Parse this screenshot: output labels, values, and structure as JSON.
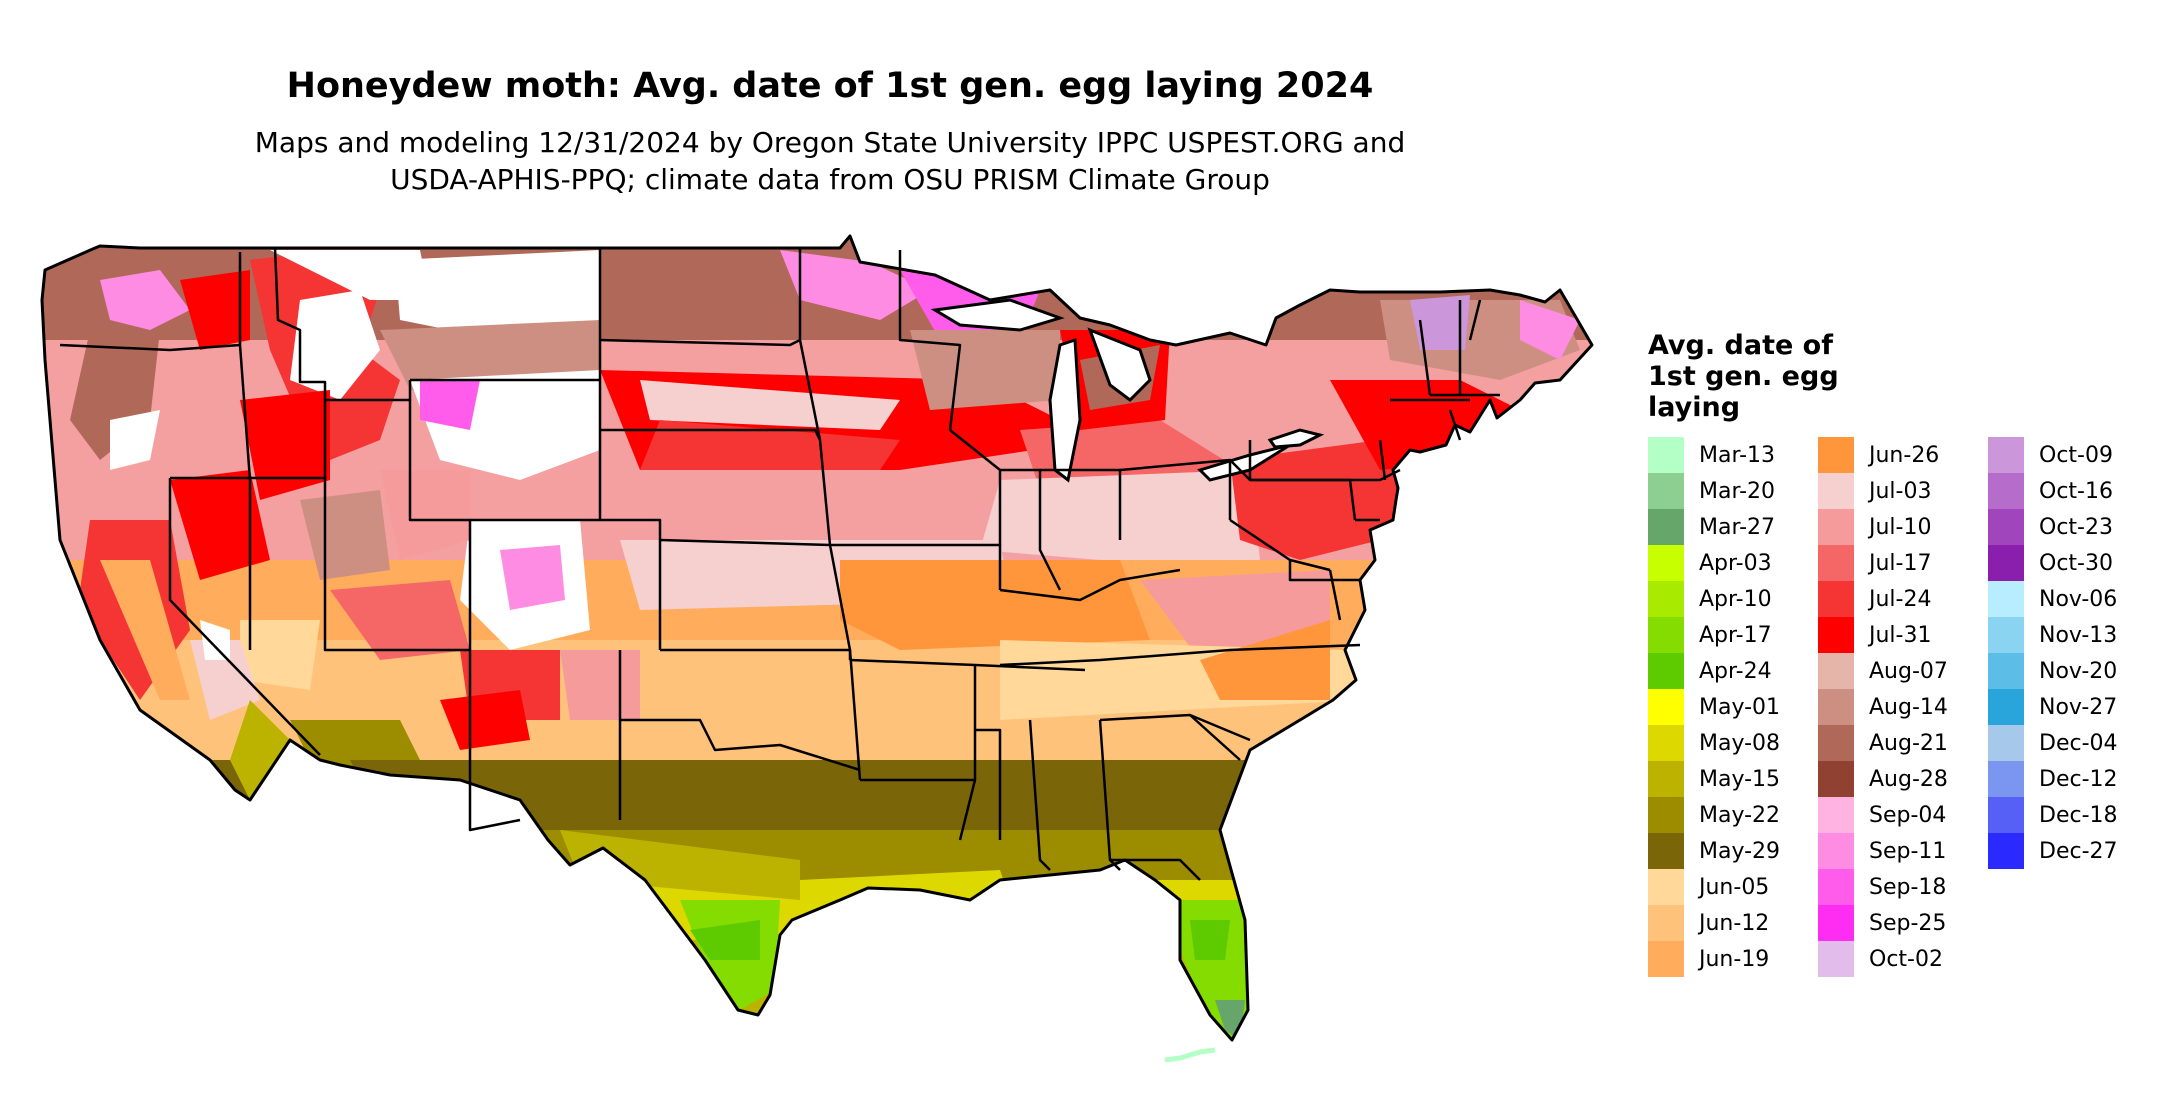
{
  "title": "Honeydew moth: Avg. date of 1st gen. egg laying 2024",
  "subtitle_line1": "Maps and modeling 12/31/2024 by Oregon State University IPPC USPEST.ORG and",
  "subtitle_line2": "USDA-APHIS-PPQ; climate data from OSU PRISM Climate Group",
  "legend": {
    "title": "Avg. date of 1st gen. egg laying",
    "entries": [
      {
        "label": "Mar-13",
        "color": "#b3ffc6"
      },
      {
        "label": "Mar-20",
        "color": "#8ccf91"
      },
      {
        "label": "Mar-27",
        "color": "#66a66a"
      },
      {
        "label": "Apr-03",
        "color": "#c8ff00"
      },
      {
        "label": "Apr-10",
        "color": "#a9eb00"
      },
      {
        "label": "Apr-17",
        "color": "#85dc00"
      },
      {
        "label": "Apr-24",
        "color": "#5dcb00"
      },
      {
        "label": "May-01",
        "color": "#ffff00"
      },
      {
        "label": "May-08",
        "color": "#dcd800"
      },
      {
        "label": "May-15",
        "color": "#bcb200"
      },
      {
        "label": "May-22",
        "color": "#9c8c00"
      },
      {
        "label": "May-29",
        "color": "#7a6608"
      },
      {
        "label": "Jun-05",
        "color": "#ffd89a"
      },
      {
        "label": "Jun-12",
        "color": "#ffc27a"
      },
      {
        "label": "Jun-19",
        "color": "#ffad5c"
      },
      {
        "label": "Jun-26",
        "color": "#ff963b"
      },
      {
        "label": "Jul-03",
        "color": "#f6cfcf"
      },
      {
        "label": "Jul-10",
        "color": "#f59b9b"
      },
      {
        "label": "Jul-17",
        "color": "#f56767"
      },
      {
        "label": "Jul-24",
        "color": "#f53434"
      },
      {
        "label": "Jul-31",
        "color": "#ff0000"
      },
      {
        "label": "Aug-07",
        "color": "#e4b5a8"
      },
      {
        "label": "Aug-14",
        "color": "#cd8f82"
      },
      {
        "label": "Aug-21",
        "color": "#b06858"
      },
      {
        "label": "Aug-28",
        "color": "#914131"
      },
      {
        "label": "Sep-04",
        "color": "#ffb3e0"
      },
      {
        "label": "Sep-11",
        "color": "#ff8ce3"
      },
      {
        "label": "Sep-18",
        "color": "#ff5ceb"
      },
      {
        "label": "Sep-25",
        "color": "#ff2cf2"
      },
      {
        "label": "Oct-02",
        "color": "#e2bde9"
      },
      {
        "label": "Oct-09",
        "color": "#cc96db"
      },
      {
        "label": "Oct-16",
        "color": "#b56ccb"
      },
      {
        "label": "Oct-23",
        "color": "#a045bb"
      },
      {
        "label": "Oct-30",
        "color": "#8a1fad"
      },
      {
        "label": "Nov-06",
        "color": "#b8ecff"
      },
      {
        "label": "Nov-13",
        "color": "#8ad4f2"
      },
      {
        "label": "Nov-20",
        "color": "#5cbde6"
      },
      {
        "label": "Nov-27",
        "color": "#2aa5dc"
      },
      {
        "label": "Dec-04",
        "color": "#a6c8ea"
      },
      {
        "label": "Dec-12",
        "color": "#7a96f0"
      },
      {
        "label": "Dec-18",
        "color": "#5660f6"
      },
      {
        "label": "Dec-27",
        "color": "#2a2aff"
      }
    ]
  }
}
